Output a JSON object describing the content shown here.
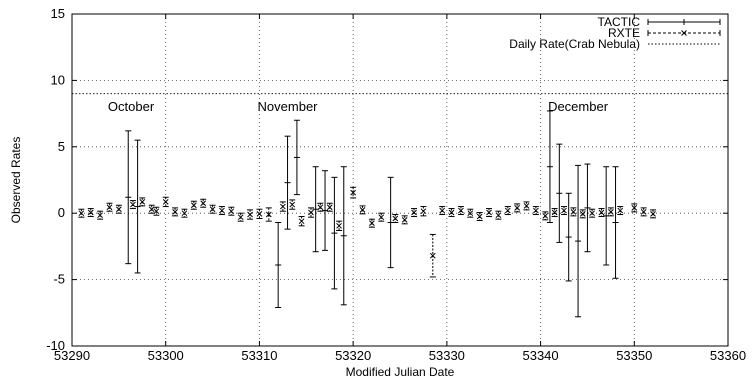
{
  "chart_data": {
    "type": "scatter",
    "title": "",
    "xlabel": "Modified Julian Date",
    "ylabel": "Observed Rates",
    "xlim": [
      53290,
      53360
    ],
    "ylim": [
      -10,
      15
    ],
    "xticks": [
      53290,
      53300,
      53310,
      53320,
      53330,
      53340,
      53350,
      53360
    ],
    "yticks": [
      -10,
      -5,
      0,
      5,
      10,
      15
    ],
    "grid": "dotted",
    "legend_position": "top-right",
    "annotations": [
      {
        "text": "October",
        "x": 53296.3,
        "y": 8.0
      },
      {
        "text": "November",
        "x": 53313.0,
        "y": 8.0
      },
      {
        "text": "December",
        "x": 53344.0,
        "y": 8.0
      }
    ],
    "reference_lines": [
      {
        "name": "Daily Rate(Crab Nebula)",
        "y": 9.0,
        "style": "dotted"
      }
    ],
    "series": [
      {
        "name": "TACTIC",
        "style": "solid-errorbar",
        "points": [
          {
            "x": 53296,
            "y": 1.2,
            "err": 5.0
          },
          {
            "x": 53297,
            "y": 0.5,
            "err": 5.0
          },
          {
            "x": 53312,
            "y": -3.9,
            "err": 3.2
          },
          {
            "x": 53313,
            "y": 2.3,
            "err": 3.5
          },
          {
            "x": 53314,
            "y": 4.2,
            "err": 2.8
          },
          {
            "x": 53316,
            "y": 0.3,
            "err": 3.2
          },
          {
            "x": 53317,
            "y": 0.2,
            "err": 3.0
          },
          {
            "x": 53318,
            "y": -1.5,
            "err": 4.2
          },
          {
            "x": 53319,
            "y": -1.7,
            "err": 5.2
          },
          {
            "x": 53324,
            "y": -0.7,
            "err": 3.4
          },
          {
            "x": 53341,
            "y": 3.5,
            "err": 4.2
          },
          {
            "x": 53342,
            "y": 1.5,
            "err": 3.7
          },
          {
            "x": 53343,
            "y": -1.8,
            "err": 3.3
          },
          {
            "x": 53344,
            "y": -2.1,
            "err": 5.7
          },
          {
            "x": 53345,
            "y": 0.4,
            "err": 3.3
          },
          {
            "x": 53347,
            "y": -0.2,
            "err": 3.7
          },
          {
            "x": 53348,
            "y": -0.7,
            "err": 4.2
          }
        ]
      },
      {
        "name": "RXTE",
        "style": "dashed-errorbar-x",
        "points": [
          {
            "x": 53291,
            "y": 0.0,
            "err": 0.3
          },
          {
            "x": 53292,
            "y": 0.05,
            "err": 0.3
          },
          {
            "x": 53293,
            "y": -0.15,
            "err": 0.3
          },
          {
            "x": 53294,
            "y": 0.45,
            "err": 0.3
          },
          {
            "x": 53295,
            "y": 0.3,
            "err": 0.3
          },
          {
            "x": 53296.5,
            "y": 0.65,
            "err": 0.3
          },
          {
            "x": 53297.5,
            "y": 0.85,
            "err": 0.3
          },
          {
            "x": 53298.5,
            "y": 0.3,
            "err": 0.3
          },
          {
            "x": 53299,
            "y": 0.15,
            "err": 0.3
          },
          {
            "x": 53300,
            "y": 0.85,
            "err": 0.35
          },
          {
            "x": 53301,
            "y": 0.1,
            "err": 0.3
          },
          {
            "x": 53302,
            "y": 0.0,
            "err": 0.3
          },
          {
            "x": 53303,
            "y": 0.6,
            "err": 0.3
          },
          {
            "x": 53304,
            "y": 0.75,
            "err": 0.3
          },
          {
            "x": 53305,
            "y": 0.3,
            "err": 0.3
          },
          {
            "x": 53306,
            "y": 0.2,
            "err": 0.3
          },
          {
            "x": 53307,
            "y": 0.15,
            "err": 0.3
          },
          {
            "x": 53308,
            "y": -0.3,
            "err": 0.3
          },
          {
            "x": 53309,
            "y": -0.1,
            "err": 0.35
          },
          {
            "x": 53310,
            "y": -0.05,
            "err": 0.35
          },
          {
            "x": 53311,
            "y": -0.1,
            "err": 0.5
          },
          {
            "x": 53312.5,
            "y": 0.5,
            "err": 0.35
          },
          {
            "x": 53313.5,
            "y": 0.65,
            "err": 0.35
          },
          {
            "x": 53314.5,
            "y": -0.6,
            "err": 0.35
          },
          {
            "x": 53315.5,
            "y": 0.05,
            "err": 0.35
          },
          {
            "x": 53316.5,
            "y": 0.45,
            "err": 0.3
          },
          {
            "x": 53317.5,
            "y": 0.45,
            "err": 0.3
          },
          {
            "x": 53318.5,
            "y": -0.95,
            "err": 0.35
          },
          {
            "x": 53320,
            "y": 1.55,
            "err": 0.4
          },
          {
            "x": 53321,
            "y": 0.25,
            "err": 0.3
          },
          {
            "x": 53322,
            "y": -0.75,
            "err": 0.3
          },
          {
            "x": 53323,
            "y": -0.3,
            "err": 0.3
          },
          {
            "x": 53324.5,
            "y": -0.4,
            "err": 0.3
          },
          {
            "x": 53325.5,
            "y": -0.5,
            "err": 0.3
          },
          {
            "x": 53326.5,
            "y": 0.05,
            "err": 0.3
          },
          {
            "x": 53327.5,
            "y": 0.15,
            "err": 0.35
          },
          {
            "x": 53328.5,
            "y": -3.2,
            "err": 1.6
          },
          {
            "x": 53329.5,
            "y": 0.2,
            "err": 0.3
          },
          {
            "x": 53330.5,
            "y": 0.05,
            "err": 0.3
          },
          {
            "x": 53331.5,
            "y": 0.2,
            "err": 0.3
          },
          {
            "x": 53332.5,
            "y": 0.0,
            "err": 0.3
          },
          {
            "x": 53333.5,
            "y": -0.25,
            "err": 0.3
          },
          {
            "x": 53334.5,
            "y": 0.05,
            "err": 0.3
          },
          {
            "x": 53335.5,
            "y": -0.15,
            "err": 0.3
          },
          {
            "x": 53336.5,
            "y": 0.2,
            "err": 0.3
          },
          {
            "x": 53337.5,
            "y": 0.4,
            "err": 0.3
          },
          {
            "x": 53338.5,
            "y": 0.55,
            "err": 0.3
          },
          {
            "x": 53339.5,
            "y": 0.2,
            "err": 0.3
          },
          {
            "x": 53340.5,
            "y": -0.2,
            "err": 0.3
          },
          {
            "x": 53341.5,
            "y": 0.05,
            "err": 0.3
          },
          {
            "x": 53342.5,
            "y": 0.2,
            "err": 0.3
          },
          {
            "x": 53343.5,
            "y": 0.1,
            "err": 0.3
          },
          {
            "x": 53344.5,
            "y": -0.05,
            "err": 0.3
          },
          {
            "x": 53345.5,
            "y": 0.0,
            "err": 0.3
          },
          {
            "x": 53346.5,
            "y": 0.05,
            "err": 0.3
          },
          {
            "x": 53347.5,
            "y": 0.1,
            "err": 0.3
          },
          {
            "x": 53348.5,
            "y": 0.2,
            "err": 0.3
          },
          {
            "x": 53350,
            "y": 0.4,
            "err": 0.3
          },
          {
            "x": 53351,
            "y": 0.1,
            "err": 0.3
          },
          {
            "x": 53352,
            "y": -0.05,
            "err": 0.3
          }
        ]
      }
    ]
  }
}
